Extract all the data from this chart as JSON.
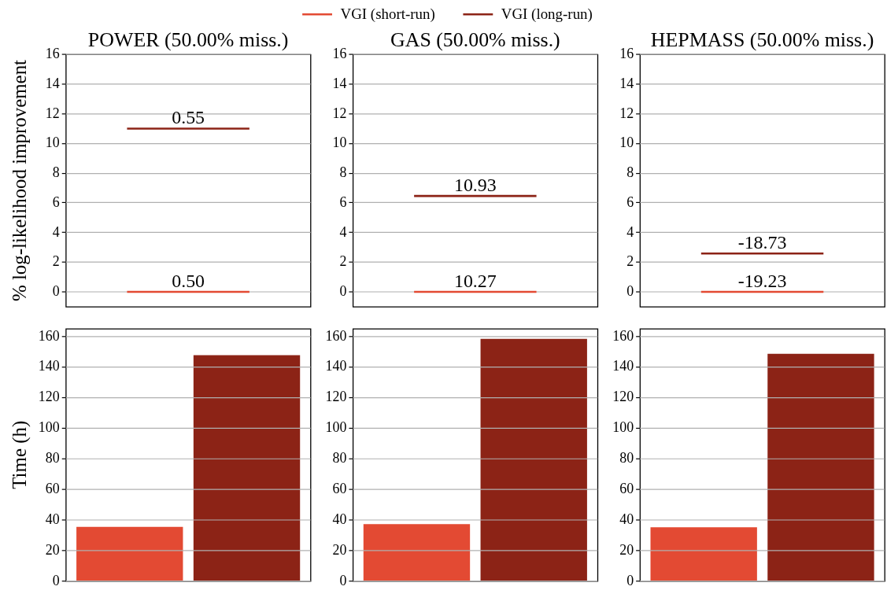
{
  "chart_data": [
    {
      "type": "line",
      "title": "POWER (50.00% miss.)",
      "ylabel": "% log-likelihood improvement",
      "categories": [
        null,
        null
      ],
      "series": [
        {
          "name": "VGI (short-run)",
          "color": "#e34a33",
          "values": [
            0,
            0
          ]
        },
        {
          "name": "VGI (long-run)",
          "color": "#8c2316",
          "values": [
            11.0,
            11.0
          ]
        }
      ],
      "annotations": [
        {
          "text": "0.50",
          "y": 0
        },
        {
          "text": "0.55",
          "y": 11.0
        }
      ],
      "ylim": [
        -1,
        16
      ],
      "yticks": [
        0,
        2,
        4,
        6,
        8,
        10,
        12,
        14,
        16
      ],
      "grid": "y",
      "legend": "top",
      "tick_labels": "y"
    },
    {
      "type": "line",
      "title": "GAS (50.00% miss.)",
      "categories": [
        null,
        null
      ],
      "series": [
        {
          "color": "#e34a33",
          "values": [
            0,
            0
          ]
        },
        {
          "color": "#8c2316",
          "values": [
            6.46,
            6.46
          ]
        }
      ],
      "annotations": [
        {
          "text": "10.27",
          "y": 0
        },
        {
          "text": "10.93",
          "y": 6.46
        }
      ],
      "ylim": [
        -1,
        16
      ],
      "yticks": [
        0,
        2,
        4,
        6,
        8,
        10,
        12,
        14,
        16
      ],
      "grid": "y",
      "tick_labels": "y"
    },
    {
      "type": "line",
      "title": "HEPMASS (50.00% miss.)",
      "categories": [
        null,
        null
      ],
      "series": [
        {
          "color": "#e34a33",
          "values": [
            0,
            0
          ]
        },
        {
          "color": "#8c2316",
          "values": [
            2.59,
            2.59
          ]
        }
      ],
      "annotations": [
        {
          "text": "-19.23",
          "y": 0
        },
        {
          "text": "-18.73",
          "y": 2.59
        }
      ],
      "ylim": [
        -1,
        16
      ],
      "yticks": [
        0,
        2,
        4,
        6,
        8,
        10,
        12,
        14,
        16
      ],
      "grid": "y",
      "tick_labels": "y"
    },
    {
      "type": "bar",
      "ylabel": "Time (h)",
      "categories": [
        null,
        null
      ],
      "values": [
        35.5,
        147.7
      ],
      "colors": [
        "#e34a33",
        "#8c2316"
      ],
      "ylim": [
        0,
        165
      ],
      "yticks": [
        0,
        20,
        40,
        60,
        80,
        100,
        120,
        140,
        160
      ],
      "grid": "y",
      "tick_labels": "y"
    },
    {
      "type": "bar",
      "categories": [
        null,
        null
      ],
      "values": [
        37.3,
        158.4
      ],
      "colors": [
        "#e34a33",
        "#8c2316"
      ],
      "ylim": [
        0,
        165
      ],
      "yticks": [
        0,
        20,
        40,
        60,
        80,
        100,
        120,
        140,
        160
      ],
      "grid": "y",
      "tick_labels": "y"
    },
    {
      "type": "bar",
      "categories": [
        null,
        null
      ],
      "values": [
        35.2,
        148.6
      ],
      "colors": [
        "#e34a33",
        "#8c2316"
      ],
      "ylim": [
        0,
        165
      ],
      "yticks": [
        0,
        20,
        40,
        60,
        80,
        100,
        120,
        140,
        160
      ],
      "grid": "y",
      "tick_labels": "y"
    }
  ]
}
